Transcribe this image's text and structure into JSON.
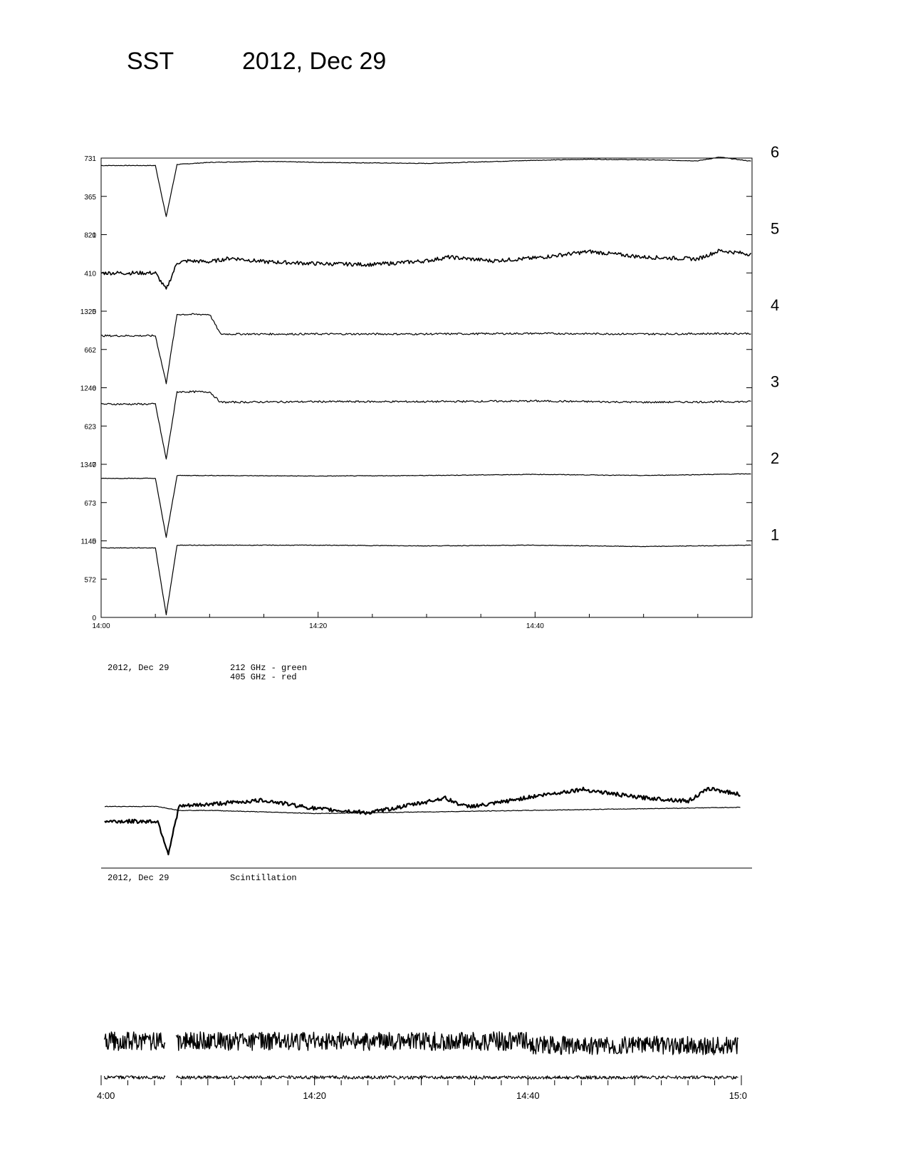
{
  "header": {
    "instrument": "SST",
    "date": "2012, Dec 29"
  },
  "chart_data": [
    {
      "type": "line",
      "x_unit": "UT",
      "x_range": [
        "14:00",
        "15:00"
      ],
      "x_tick_labels": [
        "14:00",
        "14:20",
        "14:40"
      ],
      "channel_labels": [
        "6",
        "5",
        "4",
        "3",
        "2",
        "1"
      ],
      "series": [
        {
          "channel": "6",
          "ylim": [
            0,
            731
          ],
          "y_tick_labels": [
            "731",
            "365"
          ],
          "x": [
            "14:00",
            "14:05",
            "14:06",
            "14:07",
            "14:10",
            "14:15",
            "14:20",
            "14:30",
            "14:40",
            "14:45",
            "14:50",
            "14:55",
            "14:57",
            "15:00"
          ],
          "y": [
            660,
            660,
            170,
            670,
            690,
            700,
            690,
            680,
            710,
            720,
            715,
            705,
            740,
            700
          ]
        },
        {
          "channel": "5",
          "ylim": [
            0,
            821
          ],
          "y_tick_labels": [
            "821",
            "410"
          ],
          "x": [
            "14:00",
            "14:05",
            "14:06",
            "14:07",
            "14:08",
            "14:10",
            "14:12",
            "14:15",
            "14:20",
            "14:25",
            "14:30",
            "14:32",
            "14:34",
            "14:36",
            "14:40",
            "14:45",
            "14:50",
            "14:55",
            "14:57",
            "15:00"
          ],
          "y": [
            410,
            410,
            230,
            520,
            540,
            530,
            570,
            530,
            510,
            500,
            540,
            580,
            560,
            540,
            570,
            640,
            580,
            560,
            650,
            610
          ]
        },
        {
          "channel": "4",
          "ylim": [
            0,
            1325
          ],
          "y_tick_labels": [
            "1325",
            "662"
          ],
          "x": [
            "14:00",
            "14:05",
            "14:06",
            "14:07",
            "14:08",
            "14:10",
            "14:11",
            "14:20",
            "14:30",
            "14:40",
            "14:50",
            "15:00"
          ],
          "y": [
            900,
            900,
            80,
            1270,
            1270,
            1270,
            930,
            930,
            930,
            940,
            930,
            940
          ]
        },
        {
          "channel": "3",
          "ylim": [
            0,
            1246
          ],
          "y_tick_labels": [
            "1246",
            "623"
          ],
          "x": [
            "14:00",
            "14:05",
            "14:06",
            "14:07",
            "14:08",
            "14:10",
            "14:11",
            "14:20",
            "14:30",
            "14:40",
            "14:50",
            "15:00"
          ],
          "y": [
            980,
            980,
            80,
            1180,
            1180,
            1180,
            1010,
            1020,
            1020,
            1030,
            1010,
            1020
          ]
        },
        {
          "channel": "2",
          "ylim": [
            0,
            1347
          ],
          "y_tick_labels": [
            "1347",
            "673"
          ],
          "x": [
            "14:00",
            "14:05",
            "14:06",
            "14:07",
            "14:10",
            "14:20",
            "14:30",
            "14:40",
            "14:50",
            "15:00"
          ],
          "y": [
            1100,
            1100,
            60,
            1150,
            1150,
            1140,
            1150,
            1170,
            1150,
            1180
          ]
        },
        {
          "channel": "1",
          "ylim": [
            0,
            1145
          ],
          "y_tick_labels": [
            "1145",
            "572"
          ],
          "x": [
            "14:00",
            "14:05",
            "14:06",
            "14:07",
            "14:10",
            "14:20",
            "14:30",
            "14:40",
            "14:50",
            "15:00"
          ],
          "y": [
            1040,
            1040,
            40,
            1080,
            1080,
            1080,
            1070,
            1080,
            1060,
            1080
          ]
        }
      ],
      "bottom_tick": "0"
    },
    {
      "type": "line",
      "caption_date": "2012, Dec 29",
      "legend": [
        "212 GHz - green",
        "405 GHz - red"
      ],
      "series": [
        {
          "name": "212 GHz - green",
          "x": [
            "14:00",
            "14:05",
            "14:07",
            "14:10",
            "14:15",
            "14:20",
            "14:30",
            "14:40",
            "14:50",
            "15:00"
          ],
          "y": [
            0.75,
            0.75,
            0.7,
            0.7,
            0.68,
            0.66,
            0.68,
            0.7,
            0.72,
            0.74
          ]
        },
        {
          "name": "405 GHz - red",
          "x": [
            "14:00",
            "14:05",
            "14:06",
            "14:07",
            "14:08",
            "14:10",
            "14:15",
            "14:20",
            "14:25",
            "14:30",
            "14:32",
            "14:34",
            "14:36",
            "14:40",
            "14:45",
            "14:50",
            "14:55",
            "14:57",
            "15:00"
          ],
          "y": [
            0.56,
            0.56,
            0.15,
            0.75,
            0.76,
            0.78,
            0.83,
            0.72,
            0.67,
            0.8,
            0.86,
            0.75,
            0.77,
            0.87,
            0.97,
            0.87,
            0.82,
            0.98,
            0.9
          ]
        }
      ]
    },
    {
      "type": "line",
      "caption_date": "2012, Dec 29",
      "caption_label": "Scintillation",
      "x_tick_labels": [
        "4:00",
        "14:20",
        "14:40",
        "15:0"
      ],
      "gap": [
        "14:06",
        "14:07"
      ],
      "series": [
        {
          "name": "upper",
          "level": 0.75,
          "noise": 0.22
        },
        {
          "name": "lower",
          "level": 0.2,
          "noise": 0.04
        }
      ]
    }
  ]
}
